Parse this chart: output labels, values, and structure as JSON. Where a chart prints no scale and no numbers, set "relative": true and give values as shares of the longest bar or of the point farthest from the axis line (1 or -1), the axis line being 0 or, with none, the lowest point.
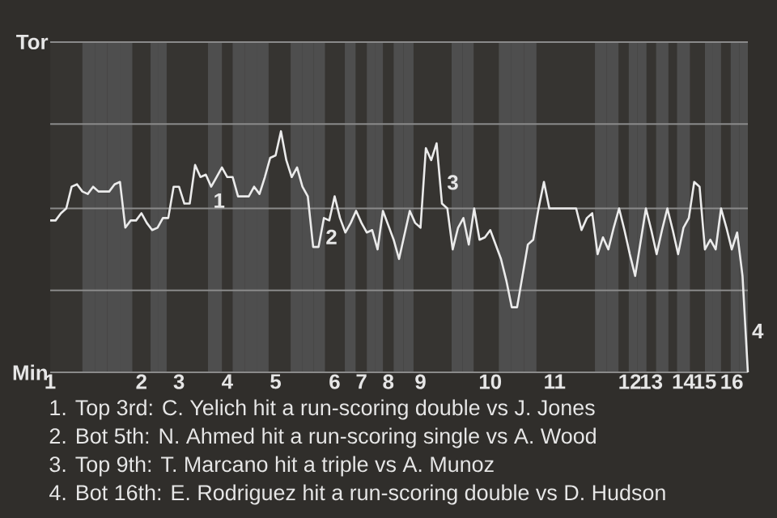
{
  "chart_data": {
    "type": "line",
    "relative": true,
    "categories": [
      "1",
      null,
      null,
      null,
      null,
      null,
      null,
      null,
      null,
      null,
      null,
      null,
      null,
      null,
      null,
      null,
      null,
      "2",
      null,
      null,
      null,
      null,
      null,
      null,
      "3",
      null,
      null,
      null,
      null,
      null,
      null,
      null,
      null,
      "4",
      null,
      null,
      null,
      null,
      null,
      null,
      null,
      null,
      "5",
      null,
      null,
      null,
      null,
      null,
      null,
      null,
      null,
      null,
      null,
      "6",
      null,
      null,
      null,
      null,
      "7",
      null,
      null,
      null,
      null,
      "8",
      null,
      null,
      null,
      null,
      null,
      "9",
      null,
      null,
      null,
      null,
      null,
      null,
      null,
      null,
      null,
      null,
      null,
      null,
      "10",
      null,
      null,
      null,
      null,
      null,
      null,
      null,
      null,
      null,
      null,
      null,
      "11",
      null,
      null,
      null,
      null,
      null,
      null,
      null,
      null,
      null,
      null,
      null,
      null,
      null,
      "12",
      null,
      null,
      null,
      "13",
      null,
      null,
      null,
      null,
      null,
      "14",
      null,
      null,
      null,
      "15",
      null,
      null,
      null,
      null,
      "16",
      null,
      null,
      null
    ],
    "series": [
      {
        "color": "#ebebeb",
        "values": [
          0.63,
          0.63,
          0.66,
          0.68,
          0.77,
          0.78,
          0.75,
          0.74,
          0.77,
          0.75,
          0.75,
          0.75,
          0.78,
          0.79,
          0.6,
          0.63,
          0.63,
          0.66,
          0.62,
          0.59,
          0.6,
          0.64,
          0.64,
          0.77,
          0.77,
          0.7,
          0.7,
          0.86,
          0.81,
          0.82,
          0.77,
          0.81,
          0.85,
          0.81,
          0.81,
          0.73,
          0.73,
          0.73,
          0.77,
          0.74,
          0.81,
          0.89,
          0.9,
          1,
          0.88,
          0.81,
          0.85,
          0.77,
          0.73,
          0.52,
          0.52,
          0.64,
          0.63,
          0.73,
          0.64,
          0.58,
          0.62,
          0.67,
          0.62,
          0.58,
          0.59,
          0.51,
          0.67,
          0.61,
          0.55,
          0.47,
          0.57,
          0.67,
          0.62,
          0.6,
          0.93,
          0.88,
          0.95,
          0.7,
          0.68,
          0.51,
          0.6,
          0.64,
          0.53,
          0.68,
          0.55,
          0.56,
          0.59,
          0.53,
          0.47,
          0.38,
          0.27,
          0.27,
          0.4,
          0.53,
          0.55,
          0.68,
          0.79,
          0.68,
          0.68,
          0.68,
          0.68,
          0.68,
          0.68,
          0.59,
          0.64,
          0.66,
          0.49,
          0.56,
          0.51,
          0.6,
          0.68,
          0.59,
          0.49,
          0.4,
          0.54,
          0.68,
          0.59,
          0.49,
          0.59,
          0.68,
          0.59,
          0.49,
          0.6,
          0.64,
          0.79,
          0.77,
          0.51,
          0.55,
          0.51,
          0.68,
          0.6,
          0.51,
          0.58,
          0.4,
          0
        ],
        "name": null
      }
    ],
    "marker": "none",
    "line_style": "solid",
    "ref_lines": [
      {
        "axis": "y",
        "value": 0,
        "label": "Min",
        "color": "#8a8a8a"
      },
      {
        "axis": "y",
        "value": 0.34,
        "color": "#8a8a8a"
      },
      {
        "axis": "y",
        "value": 0.68,
        "color": "#8a8a8a"
      },
      {
        "axis": "y",
        "value": 1.03,
        "color": "#8a8a8a"
      },
      {
        "axis": "y",
        "value": 1.37,
        "label": "Tor",
        "color": "#8a8a8a"
      }
    ],
    "annotations": [
      "1",
      "2",
      "3",
      "4",
      "1. Top 3rd: C. Yelich hit a run-scoring double vs J. Jones",
      "2. Bot 5th: N. Ahmed hit a run-scoring single vs A. Wood",
      "3. Top 9th: T. Marcano hit a triple vs A. Munoz",
      "4. Bot 16th: E. Rodriguez hit a run-scoring double vs D. Hudson"
    ]
  }
}
